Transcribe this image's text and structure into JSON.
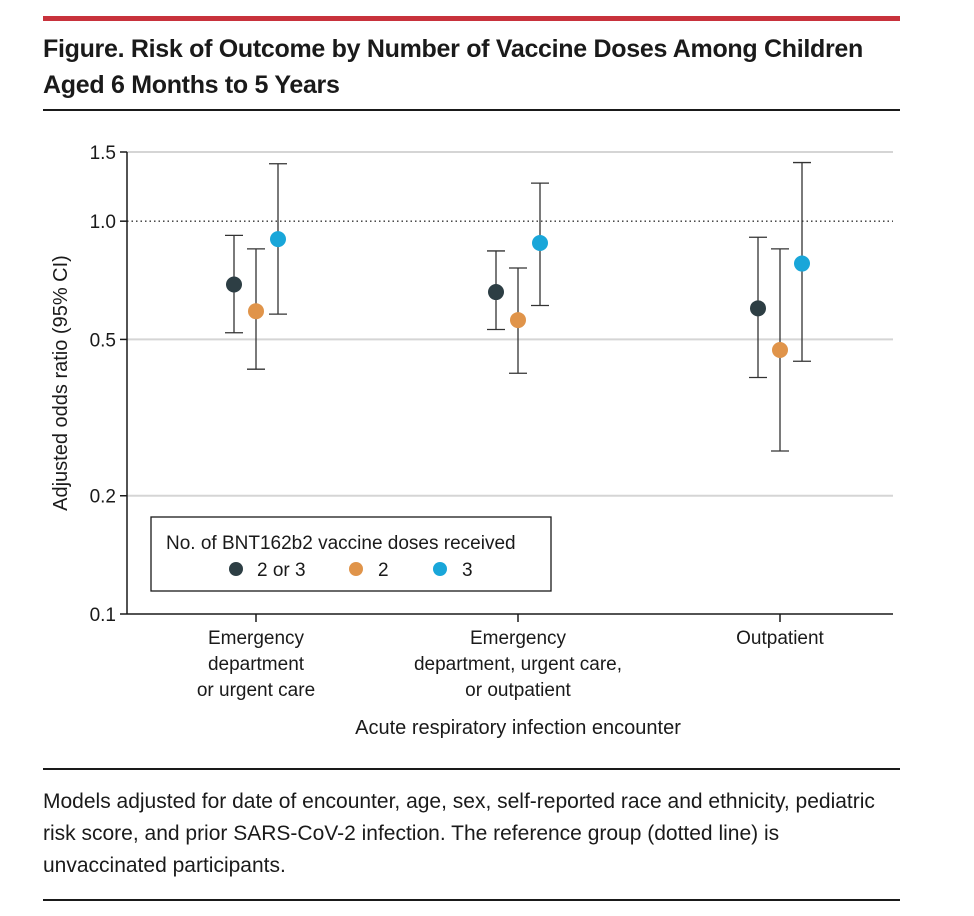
{
  "figure": {
    "title_line1": "Figure. Risk of Outcome by Number of Vaccine Doses Among Children",
    "title_line2": "Aged 6 Months to 5 Years",
    "caption": "Models adjusted for date of encounter, age, sex, self-reported race and ethnicity, pediatric risk score, and prior SARS-CoV-2 infection. The reference group (dotted line) is unvaccinated participants."
  },
  "colors": {
    "accent_bar": "#c8323c",
    "series_2_or_3": "#2d3e44",
    "series_2": "#e0944a",
    "series_3": "#19a6d9",
    "gridline": "#d5d5d5",
    "text": "#1a1a1a"
  },
  "chart_data": {
    "type": "scatter",
    "subtype": "point-estimate with 95% CI error bars",
    "y_scale": "log",
    "ylabel": "Adjusted odds ratio (95% CI)",
    "xlabel": "Acute respiratory infection encounter",
    "ylim": [
      0.1,
      1.5
    ],
    "yticks": [
      0.1,
      0.2,
      0.5,
      1.0,
      1.5
    ],
    "ytick_labels": [
      "0.1",
      "0.2",
      "0.5",
      "1.0",
      "1.5"
    ],
    "reference_line": 1.0,
    "categories": [
      [
        "Emergency",
        "department",
        "or urgent care"
      ],
      [
        "Emergency",
        "department, urgent care,",
        "or outpatient"
      ],
      [
        "Outpatient"
      ]
    ],
    "legend_title": "No. of BNT162b2 vaccine doses received",
    "legend_position": "bottom-left",
    "series": [
      {
        "name": "2 or 3",
        "color": "#2d3e44",
        "values": [
          0.69,
          0.66,
          0.6
        ],
        "ci_low": [
          0.52,
          0.53,
          0.4
        ],
        "ci_high": [
          0.92,
          0.84,
          0.91
        ]
      },
      {
        "name": "2",
        "color": "#e0944a",
        "values": [
          0.59,
          0.56,
          0.47
        ],
        "ci_low": [
          0.42,
          0.41,
          0.26
        ],
        "ci_high": [
          0.85,
          0.76,
          0.85
        ]
      },
      {
        "name": "3",
        "color": "#19a6d9",
        "values": [
          0.9,
          0.88,
          0.78
        ],
        "ci_low": [
          0.58,
          0.61,
          0.44
        ],
        "ci_high": [
          1.4,
          1.25,
          1.41
        ]
      }
    ]
  }
}
